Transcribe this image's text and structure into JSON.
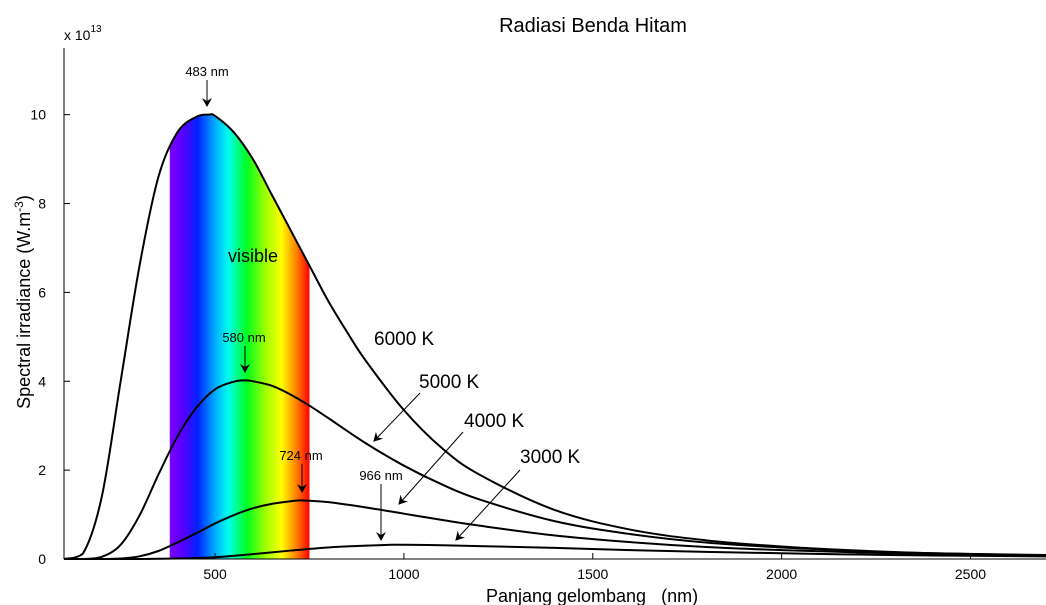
{
  "chart_data": {
    "type": "line",
    "title": "Radiasi Benda Hitam",
    "xlabel": "Panjang gelombang   (nm)",
    "ylabel": "Spectral irradiance (W.m",
    "ylabel_sup": "-3",
    "ylabel_close": ")",
    "y_multiplier_base": "x 10",
    "y_multiplier_exp": "13",
    "xlim": [
      100,
      2700
    ],
    "ylim": [
      0,
      11.5
    ],
    "x_ticks": [
      500,
      1000,
      1500,
      2000,
      2500
    ],
    "x_tick_labels": [
      "500",
      "1000",
      "1500",
      "2000",
      "2500"
    ],
    "y_ticks": [
      0,
      2,
      4,
      6,
      8,
      10
    ],
    "y_tick_labels": [
      "0",
      "2",
      "4",
      "6",
      "8",
      "10"
    ],
    "grid": false,
    "visible_band": {
      "label": "visible",
      "from": 380,
      "to": 750
    },
    "series": [
      {
        "name": "6000 K",
        "temperature": 6000,
        "peak_x": 483,
        "peak_y": 10.0,
        "peak_label": "483 nm",
        "x": [
          100,
          150,
          200,
          250,
          300,
          350,
          400,
          450,
          483,
          500,
          550,
          600,
          650,
          700,
          750,
          800,
          850,
          900,
          1000,
          1100,
          1200,
          1400,
          1600,
          1800,
          2000,
          2200,
          2400,
          2700
        ],
        "y": [
          0.0,
          0.12,
          1.4,
          4.0,
          6.6,
          8.6,
          9.6,
          9.95,
          10.0,
          9.97,
          9.6,
          9.0,
          8.2,
          7.4,
          6.6,
          5.8,
          5.1,
          4.45,
          3.35,
          2.5,
          1.9,
          1.1,
          0.66,
          0.42,
          0.28,
          0.19,
          0.13,
          0.08
        ]
      },
      {
        "name": "5000 K",
        "temperature": 5000,
        "peak_x": 580,
        "peak_y": 4.02,
        "peak_label": "580 nm",
        "x": [
          100,
          150,
          200,
          250,
          300,
          350,
          400,
          450,
          500,
          550,
          580,
          600,
          650,
          700,
          750,
          800,
          900,
          1000,
          1100,
          1200,
          1400,
          1600,
          1800,
          2000,
          2200,
          2400,
          2700
        ],
        "y": [
          0.0,
          0.0,
          0.05,
          0.32,
          0.98,
          1.9,
          2.75,
          3.4,
          3.82,
          3.99,
          4.02,
          4.0,
          3.9,
          3.7,
          3.45,
          3.17,
          2.6,
          2.1,
          1.68,
          1.34,
          0.85,
          0.56,
          0.37,
          0.26,
          0.18,
          0.13,
          0.09
        ]
      },
      {
        "name": "4000 K",
        "temperature": 4000,
        "peak_x": 724,
        "peak_y": 1.32,
        "peak_label": "724 nm",
        "x": [
          100,
          200,
          250,
          300,
          350,
          400,
          450,
          500,
          550,
          600,
          650,
          700,
          724,
          750,
          800,
          900,
          1000,
          1100,
          1200,
          1400,
          1600,
          1800,
          2000,
          2200,
          2400,
          2700
        ],
        "y": [
          0.0,
          0.0,
          0.01,
          0.06,
          0.18,
          0.37,
          0.58,
          0.8,
          0.99,
          1.14,
          1.24,
          1.3,
          1.32,
          1.31,
          1.28,
          1.16,
          1.02,
          0.88,
          0.75,
          0.53,
          0.38,
          0.27,
          0.2,
          0.15,
          0.11,
          0.08
        ]
      },
      {
        "name": "3000 K",
        "temperature": 3000,
        "peak_x": 966,
        "peak_y": 0.32,
        "peak_label": "966 nm",
        "x": [
          100,
          300,
          400,
          500,
          600,
          700,
          800,
          900,
          966,
          1000,
          1100,
          1200,
          1400,
          1600,
          1800,
          2000,
          2200,
          2400,
          2700
        ],
        "y": [
          0.0,
          0.0,
          0.01,
          0.04,
          0.11,
          0.19,
          0.26,
          0.3,
          0.32,
          0.32,
          0.31,
          0.29,
          0.25,
          0.2,
          0.16,
          0.13,
          0.1,
          0.08,
          0.06
        ]
      }
    ],
    "annotations": {
      "visible_label": "visible",
      "peak_labels": [
        "483 nm",
        "580 nm",
        "724 nm",
        "966 nm"
      ],
      "series_labels": [
        "6000 K",
        "5000 K",
        "4000 K",
        "3000 K"
      ]
    }
  }
}
